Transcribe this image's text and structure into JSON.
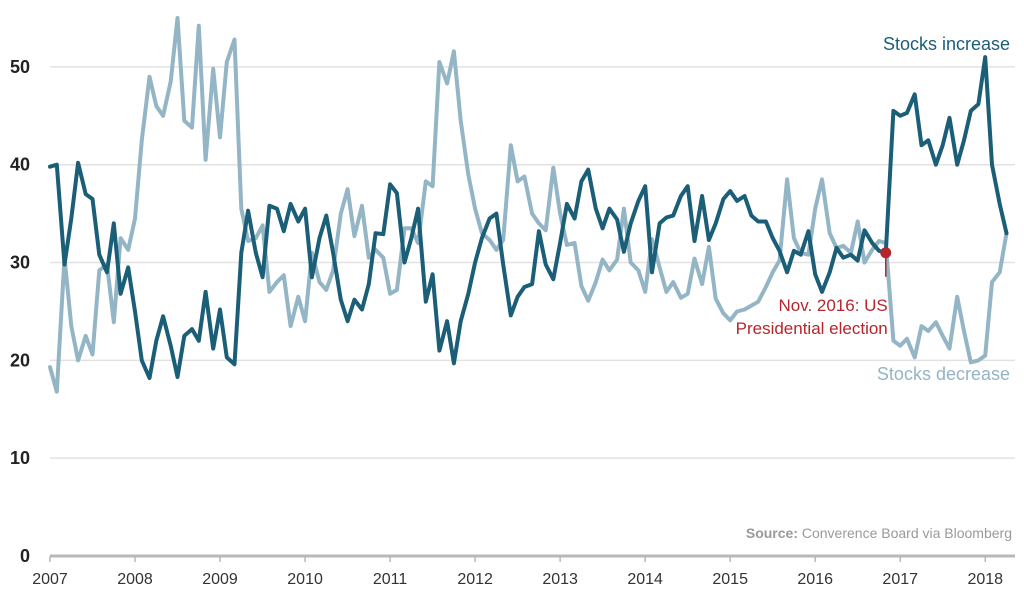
{
  "chart_data": {
    "type": "line",
    "colors": {
      "increase": "#1b5e78",
      "decrease": "#93b5c5",
      "annotation": "#b5262c",
      "grid": "#e2e2e2",
      "axis": "#b8b8b8"
    },
    "ylim": [
      0,
      55
    ],
    "yticks": [
      "0",
      "10",
      "20",
      "30",
      "40",
      "50"
    ],
    "xlim": [
      2007,
      2018.35
    ],
    "xticks": [
      "2007",
      "2008",
      "2009",
      "2010",
      "2011",
      "2012",
      "2013",
      "2014",
      "2015",
      "2016",
      "2017",
      "2018"
    ],
    "series": [
      {
        "name": "Stocks increase",
        "x": [
          2007.0,
          2007.08,
          2007.17,
          2007.25,
          2007.33,
          2007.42,
          2007.5,
          2007.58,
          2007.67,
          2007.75,
          2007.83,
          2007.92,
          2008.0,
          2008.08,
          2008.17,
          2008.25,
          2008.33,
          2008.42,
          2008.5,
          2008.58,
          2008.67,
          2008.75,
          2008.83,
          2008.92,
          2009.0,
          2009.08,
          2009.17,
          2009.25,
          2009.33,
          2009.42,
          2009.5,
          2009.58,
          2009.67,
          2009.75,
          2009.83,
          2009.92,
          2010.0,
          2010.08,
          2010.17,
          2010.25,
          2010.33,
          2010.42,
          2010.5,
          2010.58,
          2010.67,
          2010.75,
          2010.83,
          2010.92,
          2011.0,
          2011.08,
          2011.17,
          2011.25,
          2011.33,
          2011.42,
          2011.5,
          2011.58,
          2011.67,
          2011.75,
          2011.83,
          2011.92,
          2012.0,
          2012.08,
          2012.17,
          2012.25,
          2012.33,
          2012.42,
          2012.5,
          2012.58,
          2012.67,
          2012.75,
          2012.83,
          2012.92,
          2013.0,
          2013.08,
          2013.17,
          2013.25,
          2013.33,
          2013.42,
          2013.5,
          2013.58,
          2013.67,
          2013.75,
          2013.83,
          2013.92,
          2014.0,
          2014.08,
          2014.17,
          2014.25,
          2014.33,
          2014.42,
          2014.5,
          2014.58,
          2014.67,
          2014.75,
          2014.83,
          2014.92,
          2015.0,
          2015.08,
          2015.17,
          2015.25,
          2015.33,
          2015.42,
          2015.5,
          2015.58,
          2015.67,
          2015.75,
          2015.83,
          2015.92,
          2016.0,
          2016.08,
          2016.17,
          2016.25,
          2016.33,
          2016.42,
          2016.5,
          2016.58,
          2016.67,
          2016.75,
          2016.83,
          2016.92,
          2017.0,
          2017.08,
          2017.17,
          2017.25,
          2017.33,
          2017.42,
          2017.5,
          2017.58,
          2017.67,
          2017.75,
          2017.83,
          2017.92,
          2018.0,
          2018.08,
          2018.17,
          2018.25
        ],
        "values": [
          39.8,
          40.0,
          29.8,
          34.5,
          40.2,
          37.0,
          36.5,
          30.8,
          29.0,
          34.0,
          26.8,
          29.5,
          25.0,
          20.0,
          18.2,
          22.0,
          24.5,
          21.5,
          18.3,
          22.5,
          23.2,
          22.0,
          27.0,
          21.2,
          25.2,
          20.3,
          19.6,
          31.0,
          35.3,
          31.0,
          28.5,
          35.8,
          35.5,
          33.2,
          36.0,
          34.2,
          35.5,
          28.5,
          32.5,
          34.8,
          31.0,
          26.2,
          24.0,
          26.2,
          25.2,
          27.8,
          33.0,
          32.9,
          38.0,
          37.1,
          30.0,
          32.5,
          35.5,
          26.0,
          28.8,
          21.0,
          24.0,
          19.7,
          24.0,
          26.8,
          30.0,
          32.5,
          34.5,
          35.0,
          29.8,
          24.6,
          26.5,
          27.5,
          27.8,
          33.2,
          29.8,
          28.3,
          32.0,
          36.0,
          34.5,
          38.3,
          39.5,
          35.5,
          33.5,
          35.5,
          34.4,
          31.1,
          34.0,
          36.3,
          37.8,
          29.0,
          34.0,
          34.6,
          34.8,
          36.8,
          37.8,
          32.2,
          36.8,
          32.3,
          34.0,
          36.5,
          37.3,
          36.3,
          36.8,
          34.8,
          34.2,
          34.2,
          32.5,
          31.2,
          29.0,
          31.2,
          30.8,
          33.2,
          28.8,
          27.0,
          29.0,
          31.5,
          30.5,
          30.8,
          30.2,
          33.3,
          32.0,
          31.2,
          31.0,
          45.5,
          45.0,
          45.3,
          47.2,
          42.0,
          42.5,
          40.0,
          42.0,
          44.8,
          40.0,
          42.5,
          45.5,
          46.2,
          51.0,
          40.0,
          36.0,
          33.0
        ]
      },
      {
        "name": "Stocks decrease",
        "x": [
          2007.0,
          2007.08,
          2007.17,
          2007.25,
          2007.33,
          2007.42,
          2007.5,
          2007.58,
          2007.67,
          2007.75,
          2007.83,
          2007.92,
          2008.0,
          2008.08,
          2008.17,
          2008.25,
          2008.33,
          2008.42,
          2008.5,
          2008.58,
          2008.67,
          2008.75,
          2008.83,
          2008.92,
          2009.0,
          2009.08,
          2009.17,
          2009.25,
          2009.33,
          2009.42,
          2009.5,
          2009.58,
          2009.67,
          2009.75,
          2009.83,
          2009.92,
          2010.0,
          2010.08,
          2010.17,
          2010.25,
          2010.33,
          2010.42,
          2010.5,
          2010.58,
          2010.67,
          2010.75,
          2010.83,
          2010.92,
          2011.0,
          2011.08,
          2011.17,
          2011.25,
          2011.33,
          2011.42,
          2011.5,
          2011.58,
          2011.67,
          2011.75,
          2011.83,
          2011.92,
          2012.0,
          2012.08,
          2012.17,
          2012.25,
          2012.33,
          2012.42,
          2012.5,
          2012.58,
          2012.67,
          2012.75,
          2012.83,
          2012.92,
          2013.0,
          2013.08,
          2013.17,
          2013.25,
          2013.33,
          2013.42,
          2013.5,
          2013.58,
          2013.67,
          2013.75,
          2013.83,
          2013.92,
          2014.0,
          2014.08,
          2014.17,
          2014.25,
          2014.33,
          2014.42,
          2014.5,
          2014.58,
          2014.67,
          2014.75,
          2014.83,
          2014.92,
          2015.0,
          2015.08,
          2015.17,
          2015.25,
          2015.33,
          2015.42,
          2015.5,
          2015.58,
          2015.67,
          2015.75,
          2015.83,
          2015.92,
          2016.0,
          2016.08,
          2016.17,
          2016.25,
          2016.33,
          2016.42,
          2016.5,
          2016.58,
          2016.67,
          2016.75,
          2016.83,
          2016.92,
          2017.0,
          2017.08,
          2017.17,
          2017.25,
          2017.33,
          2017.42,
          2017.5,
          2017.58,
          2017.67,
          2017.75,
          2017.83,
          2017.92,
          2018.0,
          2018.08,
          2018.17,
          2018.25
        ],
        "values": [
          19.3,
          16.8,
          30.5,
          23.5,
          20.0,
          22.5,
          20.6,
          29.2,
          29.8,
          23.9,
          32.5,
          31.3,
          34.5,
          42.5,
          49.0,
          46.0,
          45.0,
          48.5,
          55.0,
          44.5,
          43.8,
          54.2,
          40.5,
          49.8,
          42.8,
          50.5,
          52.8,
          35.5,
          32.2,
          32.5,
          33.8,
          27.0,
          28.0,
          28.7,
          23.5,
          26.5,
          24.0,
          31.0,
          28.0,
          27.2,
          29.2,
          35.0,
          37.5,
          32.7,
          35.8,
          30.5,
          31.3,
          30.5,
          26.8,
          27.2,
          33.5,
          33.5,
          32.0,
          38.3,
          37.8,
          50.5,
          48.3,
          51.6,
          44.5,
          39.0,
          35.5,
          33.0,
          32.3,
          31.3,
          32.3,
          42.0,
          38.3,
          38.8,
          35.0,
          34.0,
          33.3,
          39.7,
          35.0,
          31.8,
          32.0,
          27.6,
          26.1,
          28.0,
          30.3,
          29.2,
          30.3,
          35.5,
          30.0,
          29.2,
          27.0,
          32.4,
          29.5,
          27.0,
          28.0,
          26.4,
          26.8,
          30.4,
          27.8,
          31.6,
          26.3,
          24.8,
          24.1,
          25.0,
          25.2,
          25.6,
          26.0,
          27.5,
          29.0,
          30.2,
          38.5,
          32.5,
          31.0,
          30.8,
          35.5,
          38.5,
          33.0,
          31.5,
          31.7,
          31.0,
          34.2,
          30.0,
          31.3,
          32.2,
          32.0,
          22.0,
          21.5,
          22.2,
          20.3,
          23.5,
          23.0,
          23.9,
          22.5,
          21.2,
          26.5,
          23.0,
          19.8,
          20.0,
          20.5,
          28.0,
          29.0,
          33.0
        ]
      }
    ],
    "series_labels": {
      "increase": "Stocks increase",
      "decrease": "Stocks decrease"
    },
    "annotations": [
      {
        "x": 2016.83,
        "y": 31.0,
        "line1": "Nov. 2016: US",
        "line2": "Presidential election"
      }
    ],
    "source": {
      "label": "Source:",
      "text": " Converence Board via Bloomberg"
    },
    "grid": true
  }
}
